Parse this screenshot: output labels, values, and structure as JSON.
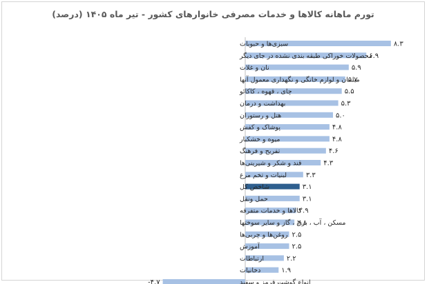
{
  "chart_data": {
    "type": "bar",
    "orientation": "horizontal",
    "title": "تورم ماهانه کالاها و خدمات مصرفی خانوارهای کشور - تیر ماه ۱۴۰۵ (درصد)",
    "xlabel": "",
    "ylabel": "",
    "xlim": [
      -5,
      9
    ],
    "grid": false,
    "legend": "none",
    "categories": [
      "سبزی‌ها و حبوبات",
      "محصولات خوراکی طبقه بندی نشده در جای دیگر",
      "نان و غلات",
      "مبلمان و لوازم خانگی و نگهداری معمول آنها",
      "چای ، قهوه ، کاکائو",
      "بهداشت و درمان",
      "هتل و رستوران",
      "پوشاک و کفش",
      "میوه و خشکبار",
      "تفریح و فرهنگ",
      "قند و شکر و شیرینی‌ها",
      "لبنیات و تخم مرغ",
      "شاخص کل",
      "حمل ونقل",
      "کالاها و خدمات متفرقه",
      "مسکن ، آب ، برق ، گاز و سایر سوختها",
      "روغن‌ها و چربی‌ها",
      "آموزش",
      "ارتباطات",
      "دخانیات",
      "انواع گوشت قرمز و سفید"
    ],
    "values": [
      8.3,
      6.9,
      5.9,
      5.7,
      5.5,
      5.3,
      5.0,
      4.8,
      4.8,
      4.6,
      4.3,
      3.3,
      3.1,
      3.1,
      2.9,
      2.8,
      2.5,
      2.5,
      2.2,
      1.9,
      -4.7
    ],
    "value_labels": [
      "۸.۳",
      "۶.۹",
      "۵.۹",
      "۵.۷",
      "۵.۵",
      "۵.۳",
      "۵.۰",
      "۴.۸",
      "۴.۸",
      "۴.۶",
      "۴.۳",
      "۳.۳",
      "۳.۱",
      "۳.۱",
      "۲.۹",
      "۲.۸",
      "۲.۵",
      "۲.۵",
      "۲.۲",
      "۱.۹",
      "-۴.۷"
    ],
    "highlight_index": 12,
    "colors": {
      "bar": "#a7c1e4",
      "highlight": "#2e5f8f",
      "axis": "#bfbfbf"
    }
  }
}
